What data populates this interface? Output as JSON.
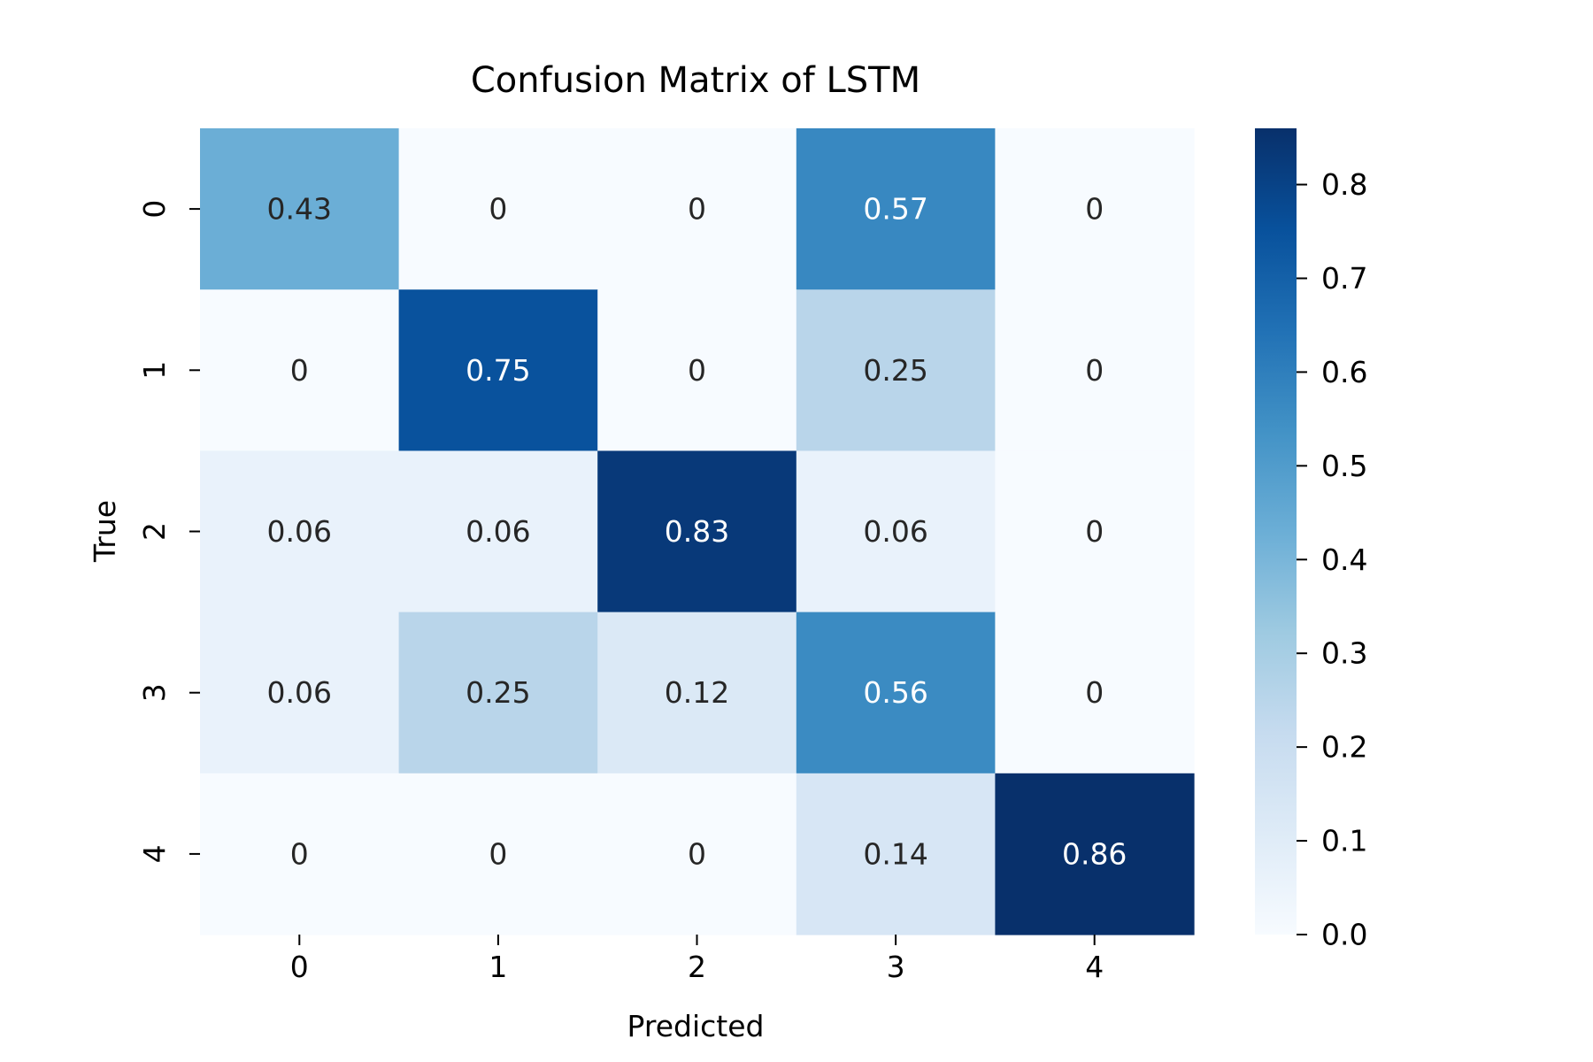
{
  "chart_data": {
    "type": "heatmap",
    "title": "Confusion Matrix of LSTM",
    "xlabel": "Predicted",
    "ylabel": "True",
    "x_categories": [
      "0",
      "1",
      "2",
      "3",
      "4"
    ],
    "y_categories": [
      "0",
      "1",
      "2",
      "3",
      "4"
    ],
    "values": [
      [
        0.43,
        0,
        0,
        0.57,
        0
      ],
      [
        0,
        0.75,
        0,
        0.25,
        0
      ],
      [
        0.06,
        0.06,
        0.83,
        0.06,
        0
      ],
      [
        0.06,
        0.25,
        0.12,
        0.56,
        0
      ],
      [
        0,
        0,
        0,
        0.14,
        0.86
      ]
    ],
    "cell_labels": [
      [
        "0.43",
        "0",
        "0",
        "0.57",
        "0"
      ],
      [
        "0",
        "0.75",
        "0",
        "0.25",
        "0"
      ],
      [
        "0.06",
        "0.06",
        "0.83",
        "0.06",
        "0"
      ],
      [
        "0.06",
        "0.25",
        "0.12",
        "0.56",
        "0"
      ],
      [
        "0",
        "0",
        "0",
        "0.14",
        "0.86"
      ]
    ],
    "colorbar": {
      "range": [
        0,
        0.86
      ],
      "ticks": [
        "0.0",
        "0.1",
        "0.2",
        "0.3",
        "0.4",
        "0.5",
        "0.6",
        "0.7",
        "0.8"
      ],
      "colormap": "Blues",
      "colors": [
        "#f7fbff",
        "#deebf7",
        "#c6dbef",
        "#9ecae1",
        "#6baed6",
        "#4292c6",
        "#2171b5",
        "#08519c",
        "#08306b"
      ]
    },
    "grid": false,
    "legend": "colorbar-right"
  }
}
